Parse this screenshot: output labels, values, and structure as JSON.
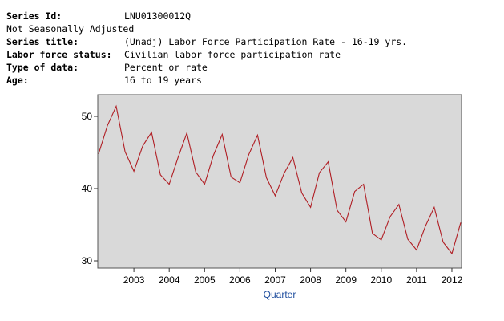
{
  "meta": [
    {
      "key": "Series Id:",
      "value": "LNU01300012Q",
      "bold": true
    },
    {
      "key": "Not Seasonally Adjusted",
      "value": "",
      "bold": false,
      "full": true
    },
    {
      "key": "Series title:",
      "value": "(Unadj) Labor Force Participation Rate - 16-19 yrs.",
      "bold": true
    },
    {
      "key": "Labor force status:",
      "value": "Civilian labor force participation rate",
      "bold": true
    },
    {
      "key": "Type of data:",
      "value": "Percent or rate",
      "bold": true
    },
    {
      "key": "Age:",
      "value": "16 to 19 years",
      "bold": true
    }
  ],
  "chart_data": {
    "type": "line",
    "xlabel": "Quarter",
    "ylabel": "",
    "x_ticks": [
      "2003",
      "2004",
      "2005",
      "2006",
      "2007",
      "2008",
      "2009",
      "2010",
      "2011",
      "2012"
    ],
    "y_ticks": [
      30,
      40,
      50
    ],
    "ylim": [
      29,
      53
    ],
    "grid": false,
    "colors": {
      "line": "#b01e24",
      "plot_bg": "#d9d9d9",
      "xlabel": "#1f4e9e"
    },
    "series": [
      {
        "x": [
          "2002 Q1",
          "2002 Q2",
          "2002 Q3",
          "2002 Q4",
          "2003 Q1",
          "2003 Q2",
          "2003 Q3",
          "2003 Q4",
          "2004 Q1",
          "2004 Q2",
          "2004 Q3",
          "2004 Q4",
          "2005 Q1",
          "2005 Q2",
          "2005 Q3",
          "2005 Q4",
          "2006 Q1",
          "2006 Q2",
          "2006 Q3",
          "2006 Q4",
          "2007 Q1",
          "2007 Q2",
          "2007 Q3",
          "2007 Q4",
          "2008 Q1",
          "2008 Q2",
          "2008 Q3",
          "2008 Q4",
          "2009 Q1",
          "2009 Q2",
          "2009 Q3",
          "2009 Q4",
          "2010 Q1",
          "2010 Q2",
          "2010 Q3",
          "2010 Q4",
          "2011 Q1",
          "2011 Q2",
          "2011 Q3",
          "2011 Q4",
          "2012 Q1",
          "2012 Q2"
        ],
        "values": [
          44.8,
          48.7,
          51.4,
          45.1,
          42.4,
          45.9,
          47.8,
          41.9,
          40.6,
          44.3,
          47.7,
          42.3,
          40.6,
          44.6,
          47.5,
          41.6,
          40.8,
          44.7,
          47.4,
          41.5,
          39.0,
          42.1,
          44.3,
          39.4,
          37.4,
          42.2,
          43.7,
          37.0,
          35.4,
          39.6,
          40.6,
          33.8,
          32.9,
          36.1,
          37.8,
          33.0,
          31.5,
          34.8,
          37.4,
          32.6,
          31.0,
          35.3
        ]
      }
    ]
  }
}
